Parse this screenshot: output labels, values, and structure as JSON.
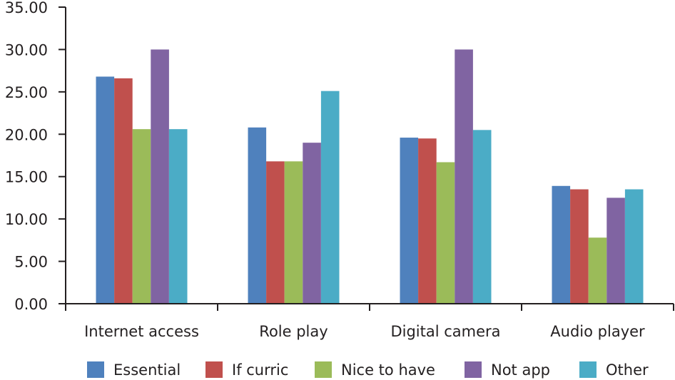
{
  "chart_data": {
    "type": "bar",
    "title": "",
    "xlabel": "",
    "ylabel": "",
    "ylim": [
      0,
      35
    ],
    "yticks": [
      "0.00",
      "5.00",
      "10.00",
      "15.00",
      "20.00",
      "25.00",
      "30.00",
      "35.00"
    ],
    "grid": false,
    "legend_position": "bottom",
    "categories": [
      "Internet access",
      "Role play",
      "Digital camera",
      "Audio player"
    ],
    "series": [
      {
        "name": "Essential",
        "color": "#4f81bd",
        "values": [
          26.8,
          20.8,
          19.6,
          13.9
        ]
      },
      {
        "name": "If curric",
        "color": "#c0504d",
        "values": [
          26.6,
          16.8,
          19.5,
          13.5
        ]
      },
      {
        "name": "Nice to have",
        "color": "#9bbb59",
        "values": [
          20.6,
          16.8,
          16.7,
          7.8
        ]
      },
      {
        "name": "Not app",
        "color": "#8064a2",
        "values": [
          30.0,
          19.0,
          30.0,
          12.5
        ]
      },
      {
        "name": "Other",
        "color": "#4bacc6",
        "values": [
          20.6,
          25.1,
          20.5,
          13.5
        ]
      }
    ]
  }
}
